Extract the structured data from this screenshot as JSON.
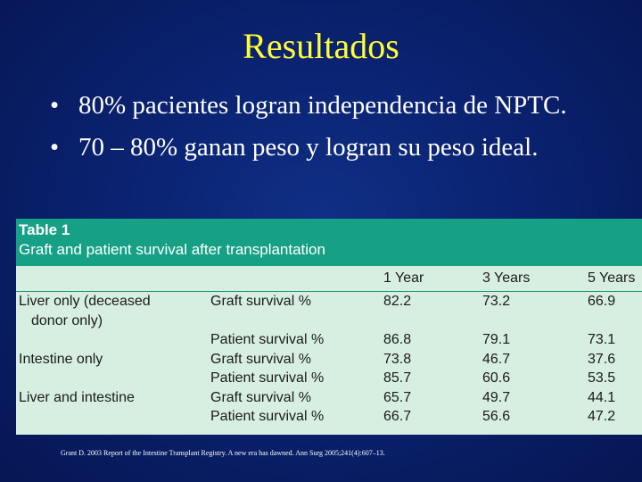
{
  "slide": {
    "title": "Resultados",
    "bullets": [
      "80% pacientes logran independencia de NPTC.",
      "70 – 80% ganan peso y logran su peso ideal."
    ],
    "bullet_symbol": "•"
  },
  "table": {
    "number": "Table 1",
    "caption": "Graft and patient survival after transplantation",
    "columns": [
      "",
      "",
      "1 Year",
      "3 Years",
      "5 Years"
    ],
    "groups": [
      {
        "label_line1": "Liver only (deceased",
        "label_line2": "donor only)",
        "rows": [
          {
            "measure": "Graft survival %",
            "y1": "82.2",
            "y3": "73.2",
            "y5": "66.9"
          },
          {
            "measure": "Patient survival %",
            "y1": "86.8",
            "y3": "79.1",
            "y5": "73.1"
          }
        ]
      },
      {
        "label_line1": "Intestine only",
        "rows": [
          {
            "measure": "Graft survival %",
            "y1": "73.8",
            "y3": "46.7",
            "y5": "37.6"
          },
          {
            "measure": "Patient survival %",
            "y1": "85.7",
            "y3": "60.6",
            "y5": "53.5"
          }
        ]
      },
      {
        "label_line1": "Liver and intestine",
        "rows": [
          {
            "measure": "Graft survival %",
            "y1": "65.7",
            "y3": "49.7",
            "y5": "44.1"
          },
          {
            "measure": "Patient survival %",
            "y1": "66.7",
            "y3": "56.6",
            "y5": "47.2"
          }
        ]
      }
    ]
  },
  "citation": "Grant D. 2003 Report of the Intestine Transplant Registry. A new era has dawned. Ann Surg 2005;241(4):607–13.",
  "colors": {
    "background": "#0a2270",
    "title": "#ffff33",
    "table_header": "#16a086",
    "table_body": "#d6efe1"
  }
}
